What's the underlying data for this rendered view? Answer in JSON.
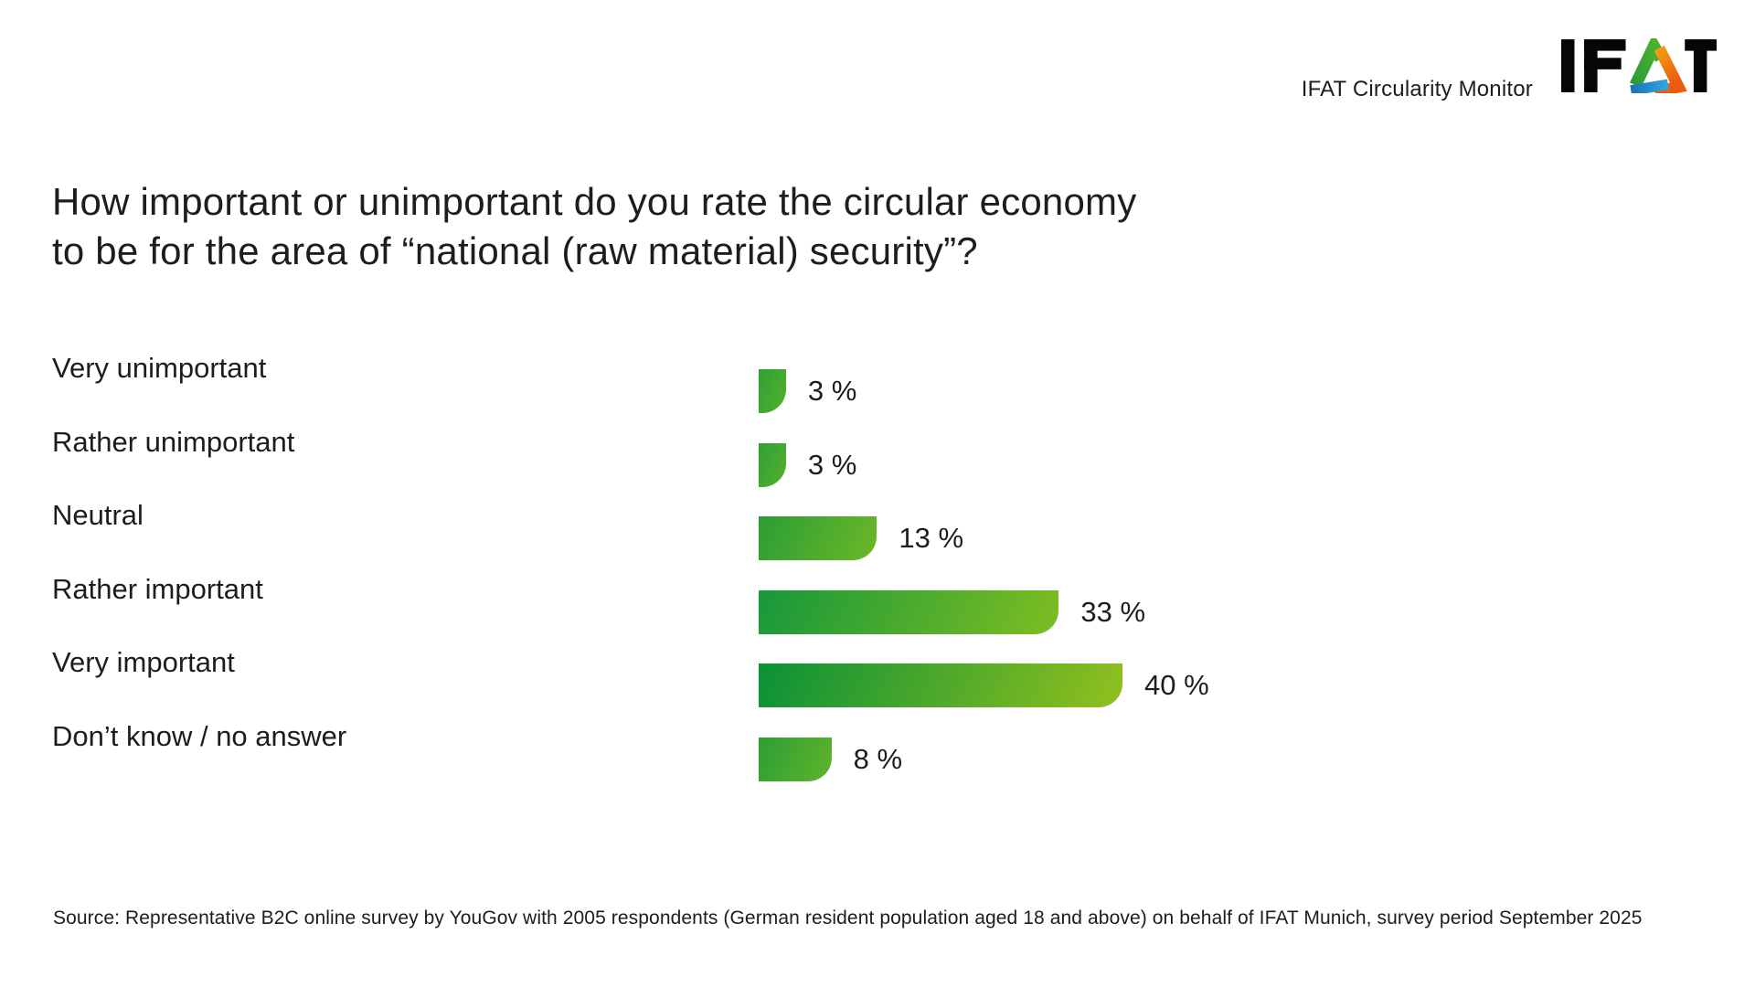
{
  "header": {
    "monitor_label": "IFAT Circularity Monitor",
    "logo_alt": "IFAT"
  },
  "title": {
    "line1": "How important or unimportant do you rate the circular economy",
    "line2": "to be for the area of “national (raw material) security”?"
  },
  "chart_data": {
    "type": "bar",
    "orientation": "horizontal",
    "title": "How important or unimportant do you rate the circular economy to be for the area of “national (raw material) security”?",
    "categories": [
      "Very unimportant",
      "Rather unimportant",
      "Neutral",
      "Rather important",
      "Very important",
      "Don’t know / no answer"
    ],
    "values": [
      3,
      3,
      13,
      33,
      40,
      8
    ],
    "value_labels": [
      "3 %",
      "3 %",
      "13 %",
      "33 %",
      "40 %",
      "8 %"
    ],
    "unit": "%",
    "xlim": [
      0,
      40
    ],
    "grid": false,
    "legend": false,
    "bar_gradients": [
      {
        "from": "#2fa035",
        "to": "#55b12d"
      },
      {
        "from": "#2fa035",
        "to": "#55b12d"
      },
      {
        "from": "#2b9d35",
        "to": "#6cb827"
      },
      {
        "from": "#17983a",
        "to": "#7fbd22"
      },
      {
        "from": "#0a9137",
        "to": "#92c01e"
      },
      {
        "from": "#2d9e35",
        "to": "#60b42a"
      }
    ]
  },
  "source": "Source: Representative B2C online survey by YouGov with 2005 respondents (German resident population aged 18 and above) on behalf of IFAT Munich, survey period September 2025",
  "colors": {
    "text": "#1d1d1b",
    "logo": {
      "letters": "#060606",
      "green_from": "#2b9c3a",
      "green_to": "#4db32e",
      "orange_from": "#f6a117",
      "orange_to": "#ea5b0c",
      "blue_from": "#1d71b8",
      "blue_to": "#2fa8e1"
    }
  }
}
